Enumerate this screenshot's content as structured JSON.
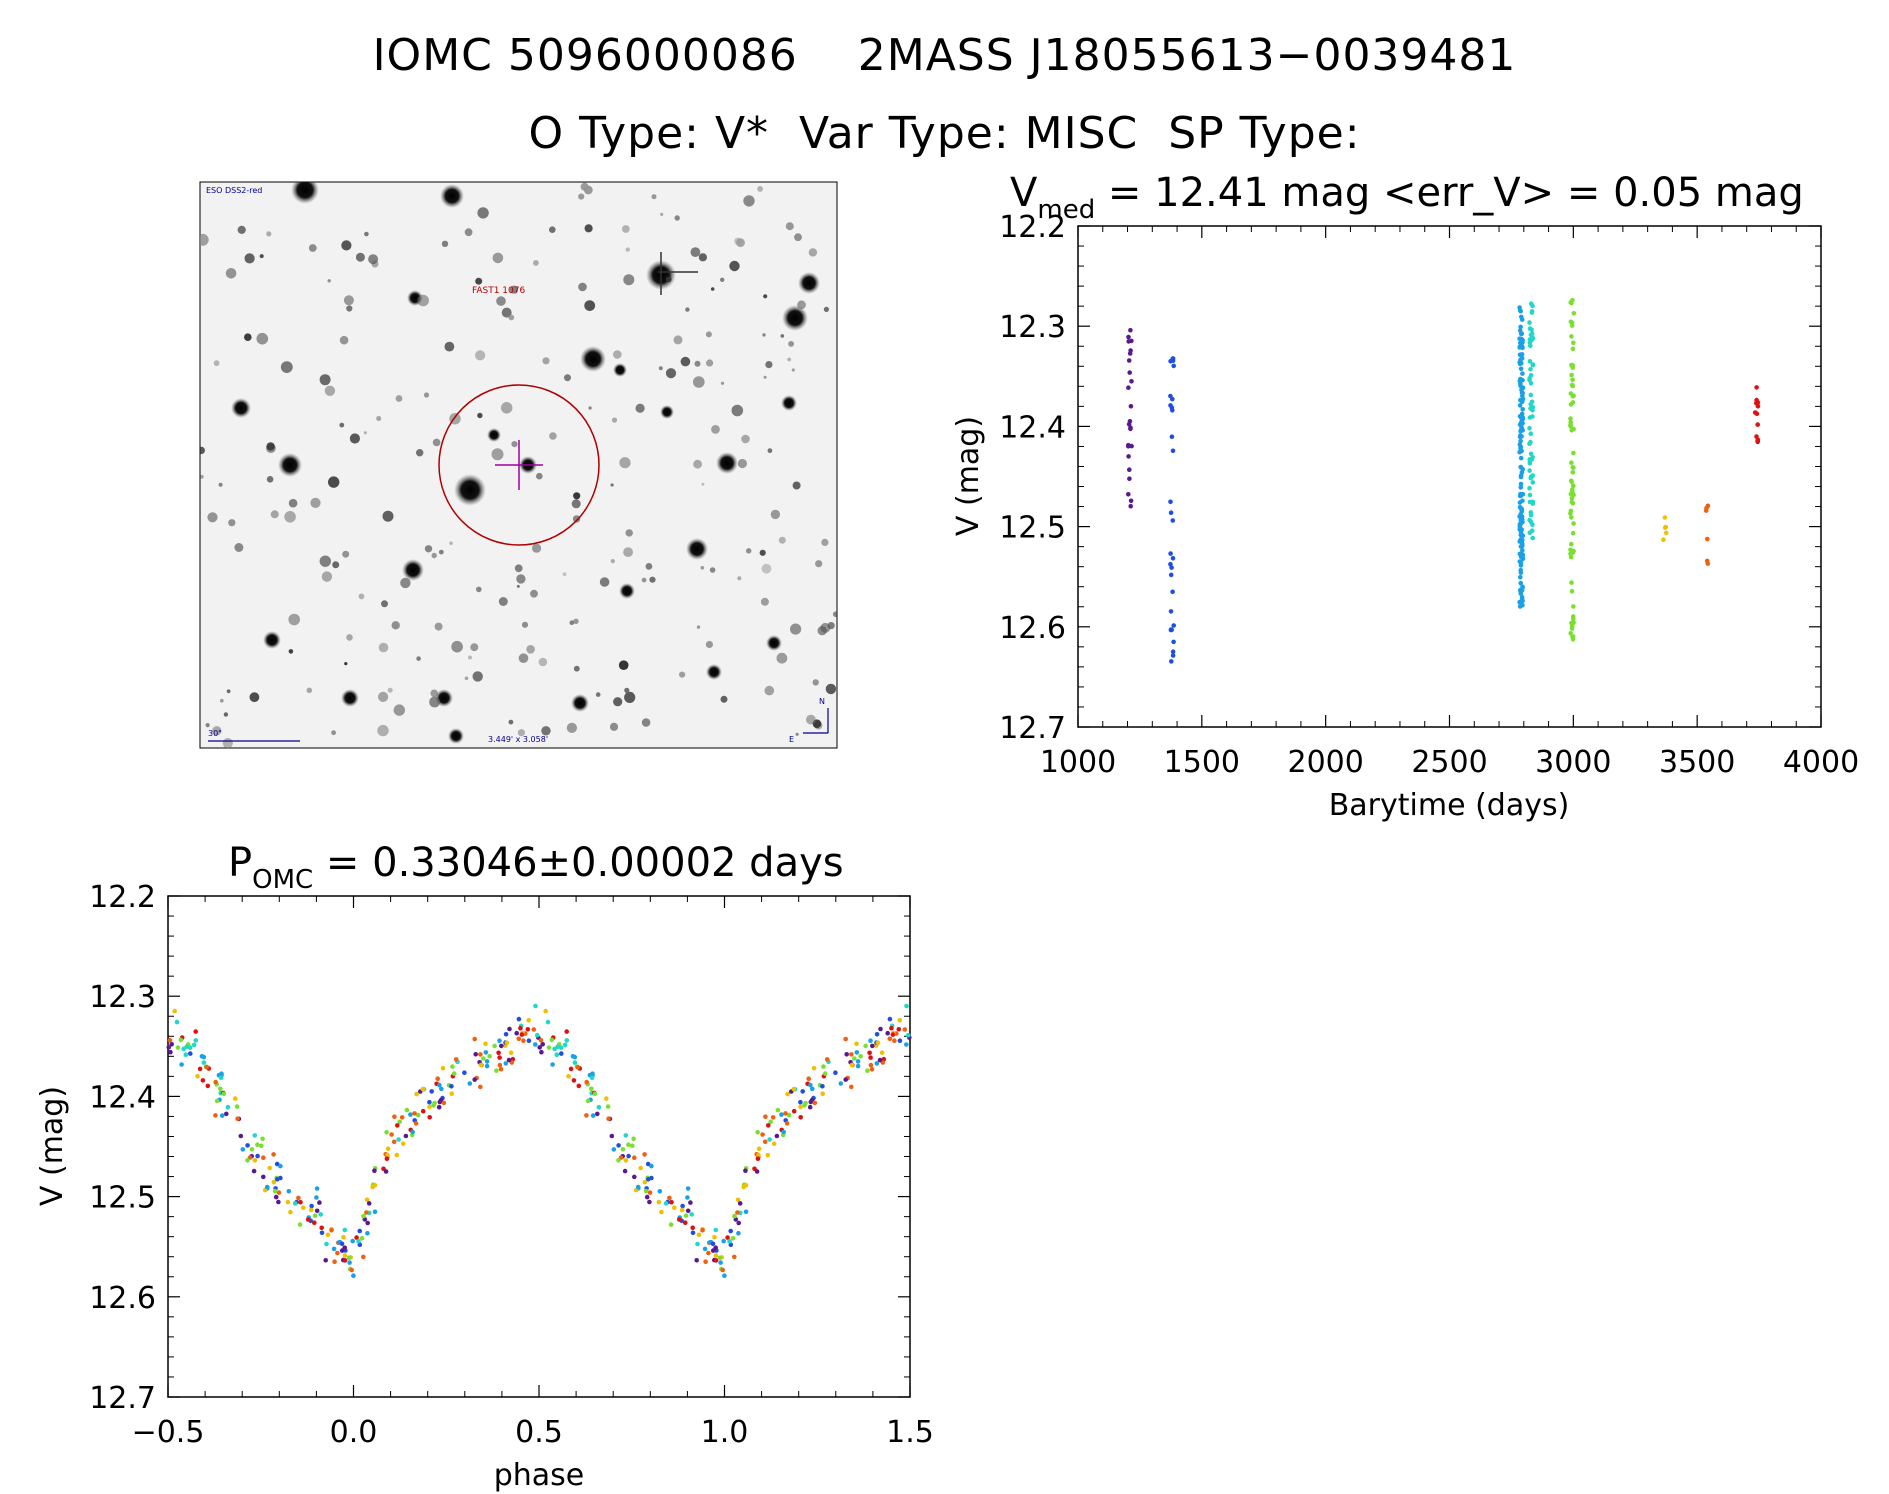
{
  "header": {
    "line1": "IOMC 5096000086    2MASS J18055613−0039481",
    "line2": "O Type: V*  Var Type: MISC  SP Type:"
  },
  "finder": {
    "survey_label": "ESO DSS2-red",
    "target_label": "FAST1 1076",
    "scale_label": "30\"",
    "fov_label": "3.449' x 3.058'",
    "north_label": "N",
    "east_label": "E",
    "colors": {
      "circle": "#b00000",
      "crosshair": "#a000a0",
      "annotation": "#00008b"
    }
  },
  "chart_data": [
    {
      "type": "scatter",
      "title_main": "V",
      "title_sub": "med",
      "title_rest": " = 12.41 mag <err_V> = 0.05 mag",
      "xlabel": "Barytime (days)",
      "ylabel": "V (mag)",
      "xlim": [
        1000,
        4000
      ],
      "ylim": [
        12.7,
        12.2
      ],
      "y_inverted": true,
      "xticks": [
        "1000",
        "1500",
        "2000",
        "2500",
        "3000",
        "3500",
        "4000"
      ],
      "yticks": [
        "12.2",
        "12.3",
        "12.4",
        "12.5",
        "12.6",
        "12.7"
      ],
      "groups": [
        {
          "x": 1210,
          "ymin": 12.3,
          "ymax": 12.49,
          "n": 24,
          "color": "#5a1a8f"
        },
        {
          "x": 1380,
          "ymin": 12.32,
          "ymax": 12.66,
          "n": 30,
          "color": "#1f4fe0"
        },
        {
          "x": 2790,
          "ymin": 12.28,
          "ymax": 12.58,
          "n": 150,
          "color": "#1aa0e8"
        },
        {
          "x": 2830,
          "ymin": 12.27,
          "ymax": 12.52,
          "n": 60,
          "color": "#20d8c8"
        },
        {
          "x": 2995,
          "ymin": 12.27,
          "ymax": 12.62,
          "n": 70,
          "color": "#7ae030"
        },
        {
          "x": 3370,
          "ymin": 12.48,
          "ymax": 12.52,
          "n": 5,
          "color": "#f0c000"
        },
        {
          "x": 3540,
          "ymin": 12.47,
          "ymax": 12.55,
          "n": 6,
          "color": "#f06010"
        },
        {
          "x": 3740,
          "ymin": 12.36,
          "ymax": 12.42,
          "n": 12,
          "color": "#e01010"
        }
      ]
    },
    {
      "type": "scatter",
      "title_main": "P",
      "title_sub": "OMC",
      "title_rest": " = 0.33046±0.00002 days",
      "xlabel": "phase",
      "ylabel": "V (mag)",
      "xlim": [
        -0.5,
        1.5
      ],
      "ylim": [
        12.7,
        12.2
      ],
      "y_inverted": true,
      "xticks": [
        "−0.5",
        "0.0",
        "0.5",
        "1.0",
        "1.5"
      ],
      "yticks": [
        "12.2",
        "12.3",
        "12.4",
        "12.5",
        "12.6",
        "12.7"
      ],
      "light_curve": {
        "phase": [
          0.0,
          0.05,
          0.1,
          0.15,
          0.2,
          0.25,
          0.3,
          0.35,
          0.4,
          0.45,
          0.5,
          0.55,
          0.6,
          0.65,
          0.7,
          0.75,
          0.8,
          0.85,
          0.9,
          0.95,
          1.0
        ],
        "v": [
          12.57,
          12.5,
          12.45,
          12.42,
          12.4,
          12.39,
          12.37,
          12.36,
          12.35,
          12.34,
          12.34,
          12.35,
          12.37,
          12.4,
          12.43,
          12.46,
          12.49,
          12.51,
          12.52,
          12.54,
          12.57
        ],
        "scatter": 0.04,
        "colors": [
          "#5a1a8f",
          "#1f4fe0",
          "#1aa0e8",
          "#20d8c8",
          "#7ae030",
          "#f0c000",
          "#f06010",
          "#e01010"
        ]
      }
    }
  ]
}
